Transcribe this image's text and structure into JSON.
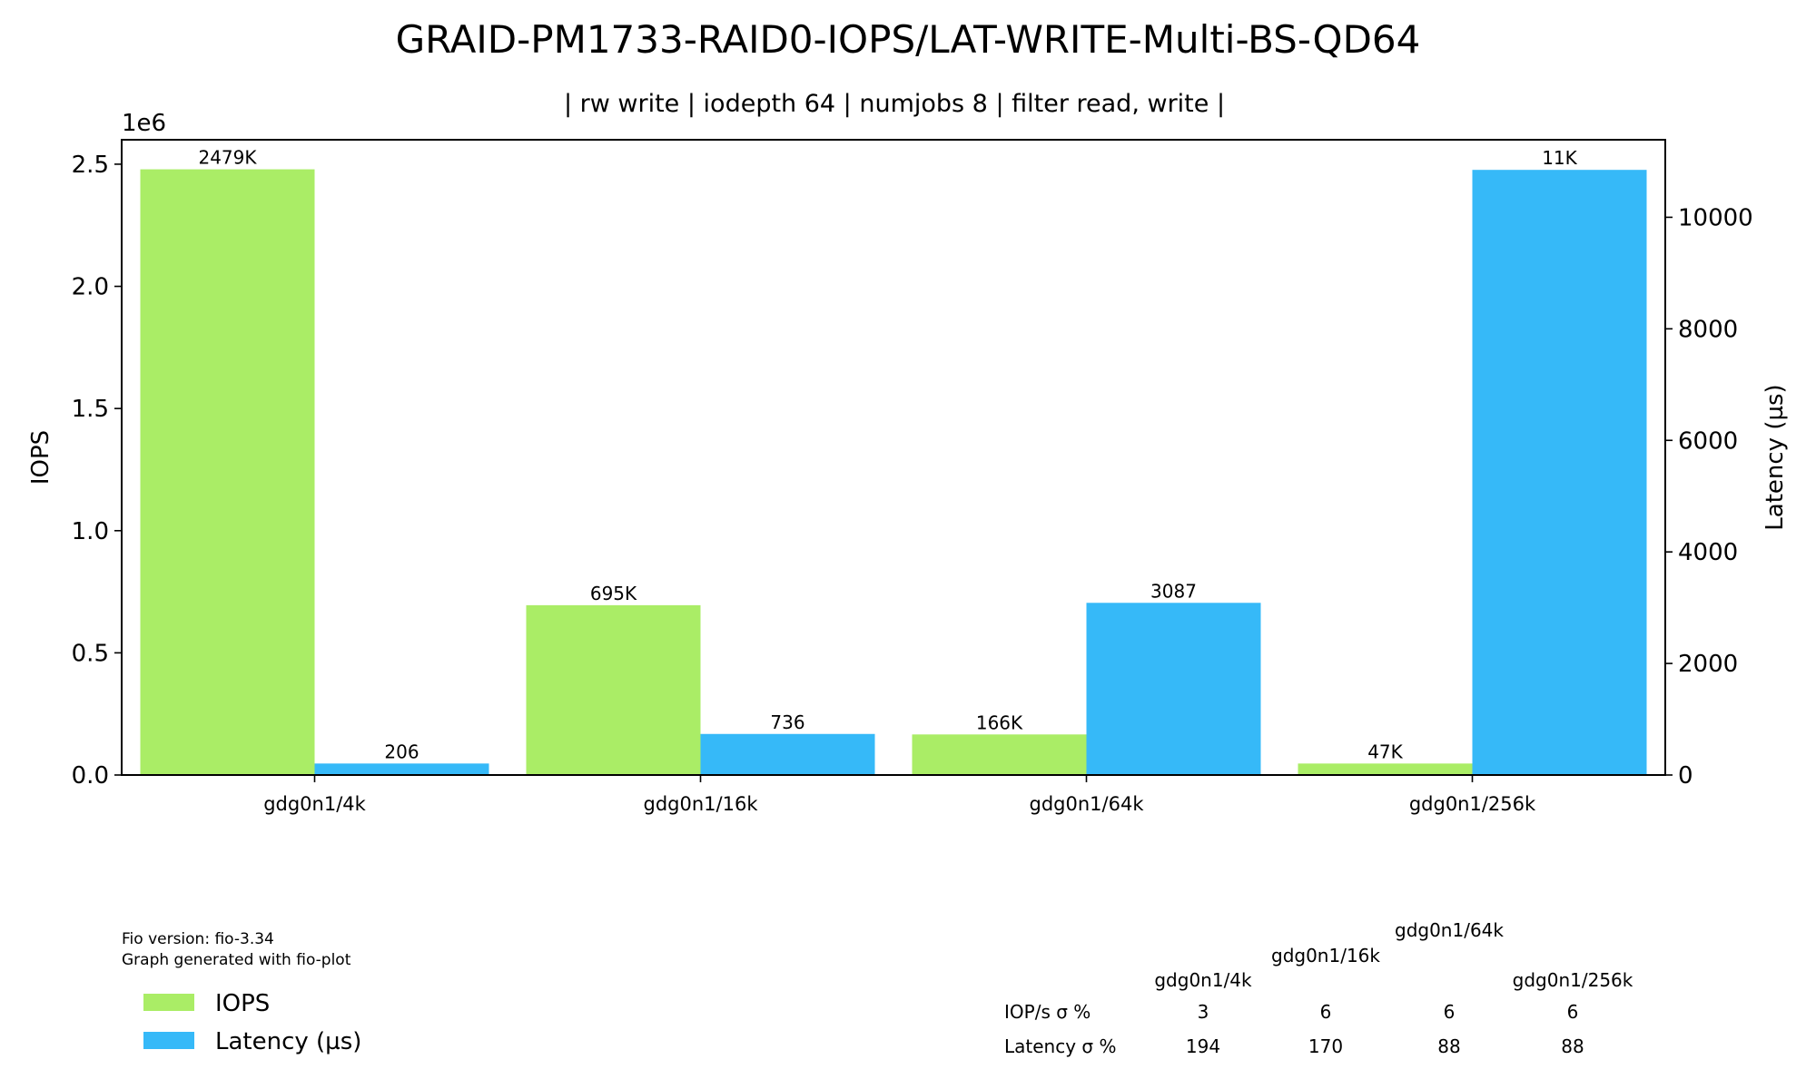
{
  "chart_data": {
    "type": "bar",
    "title": "GRAID-PM1733-RAID0-IOPS/LAT-WRITE-Multi-BS-QD64",
    "subtitle": "| rw write | iodepth 64 | numjobs 8 | filter read, write |",
    "categories": [
      "gdg0n1/4k",
      "gdg0n1/16k",
      "gdg0n1/64k",
      "gdg0n1/256k"
    ],
    "series": [
      {
        "name": "IOPS",
        "axis": "left",
        "color": "#aaed66",
        "values": [
          2479000,
          695000,
          166000,
          47000
        ],
        "labels": [
          "2479K",
          "695K",
          "166K",
          "47K"
        ]
      },
      {
        "name": "Latency (µs)",
        "axis": "right",
        "color": "#36b9f8",
        "values": [
          206,
          736,
          3087,
          10850
        ],
        "labels": [
          "206",
          "736",
          "3087",
          "11K"
        ]
      }
    ],
    "ylabel": "IOPS",
    "ylabel_right": "Latency (µs)",
    "ylim": [
      0,
      2600000
    ],
    "ylim_right": [
      0,
      11390
    ],
    "yticks": [
      0,
      0.5,
      1.0,
      1.5,
      2.0,
      2.5
    ],
    "yticks_labels": [
      "0.0",
      "0.5",
      "1.0",
      "1.5",
      "2.0",
      "2.5"
    ],
    "y_offset_label": "1e6",
    "yticks_right": [
      0,
      2000,
      4000,
      6000,
      8000,
      10000
    ],
    "yticks_right_labels": [
      "0",
      "2000",
      "4000",
      "6000",
      "8000",
      "10000"
    ],
    "grid": false,
    "legend_position": "bottom-left",
    "footer": {
      "fio_version": "Fio version: fio-3.34",
      "generated": "Graph generated with fio-plot"
    },
    "stddev_table": {
      "columns": [
        "gdg0n1/4k",
        "gdg0n1/16k",
        "gdg0n1/64k",
        "gdg0n1/256k"
      ],
      "rows": [
        {
          "label": "IOP/s σ %",
          "values": [
            "3",
            "6",
            "6",
            "6"
          ]
        },
        {
          "label": "Latency σ %",
          "values": [
            "194",
            "170",
            "88",
            "88"
          ]
        }
      ]
    }
  }
}
